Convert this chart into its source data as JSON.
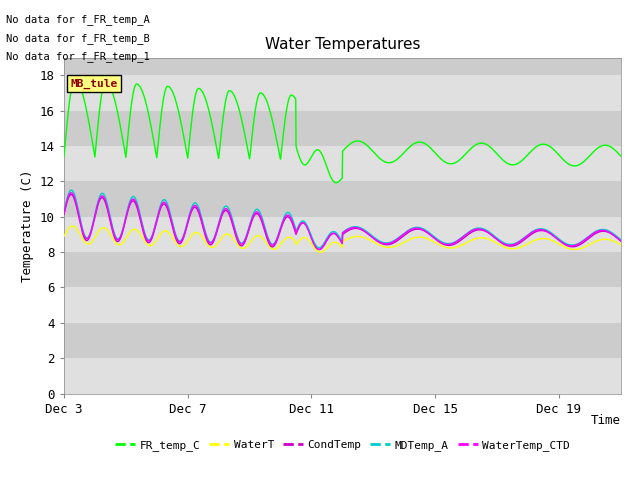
{
  "title": "Water Temperatures",
  "xlabel": "Time",
  "ylabel": "Temperature (C)",
  "ylim": [
    0,
    19
  ],
  "yticks": [
    0,
    2,
    4,
    6,
    8,
    10,
    12,
    14,
    16,
    18
  ],
  "background_color": "#ffffff",
  "plot_bg_light": "#e8e8e8",
  "plot_bg_dark": "#d0d0d0",
  "annotations": [
    "No data for f_FR_temp_A",
    "No data for f_FR_temp_B",
    "No data for f_FR_temp_1"
  ],
  "annotation_box_text": "MB_tule",
  "legend_entries": [
    {
      "label": "FR_temp_C",
      "color": "#00ff00"
    },
    {
      "label": "WaterT",
      "color": "#ffff00"
    },
    {
      "label": "CondTemp",
      "color": "#cc00cc"
    },
    {
      "label": "MDTemp_A",
      "color": "#00ffff"
    },
    {
      "label": "WaterTemp_CTD",
      "color": "#ff00ff"
    }
  ],
  "xtick_labels": [
    "Dec 3",
    "Dec 7",
    "Dec 11",
    "Dec 15",
    "Dec 19"
  ],
  "xtick_positions": [
    3,
    7,
    11,
    15,
    19
  ],
  "date_start": 3,
  "date_end": 21,
  "font_size": 9
}
